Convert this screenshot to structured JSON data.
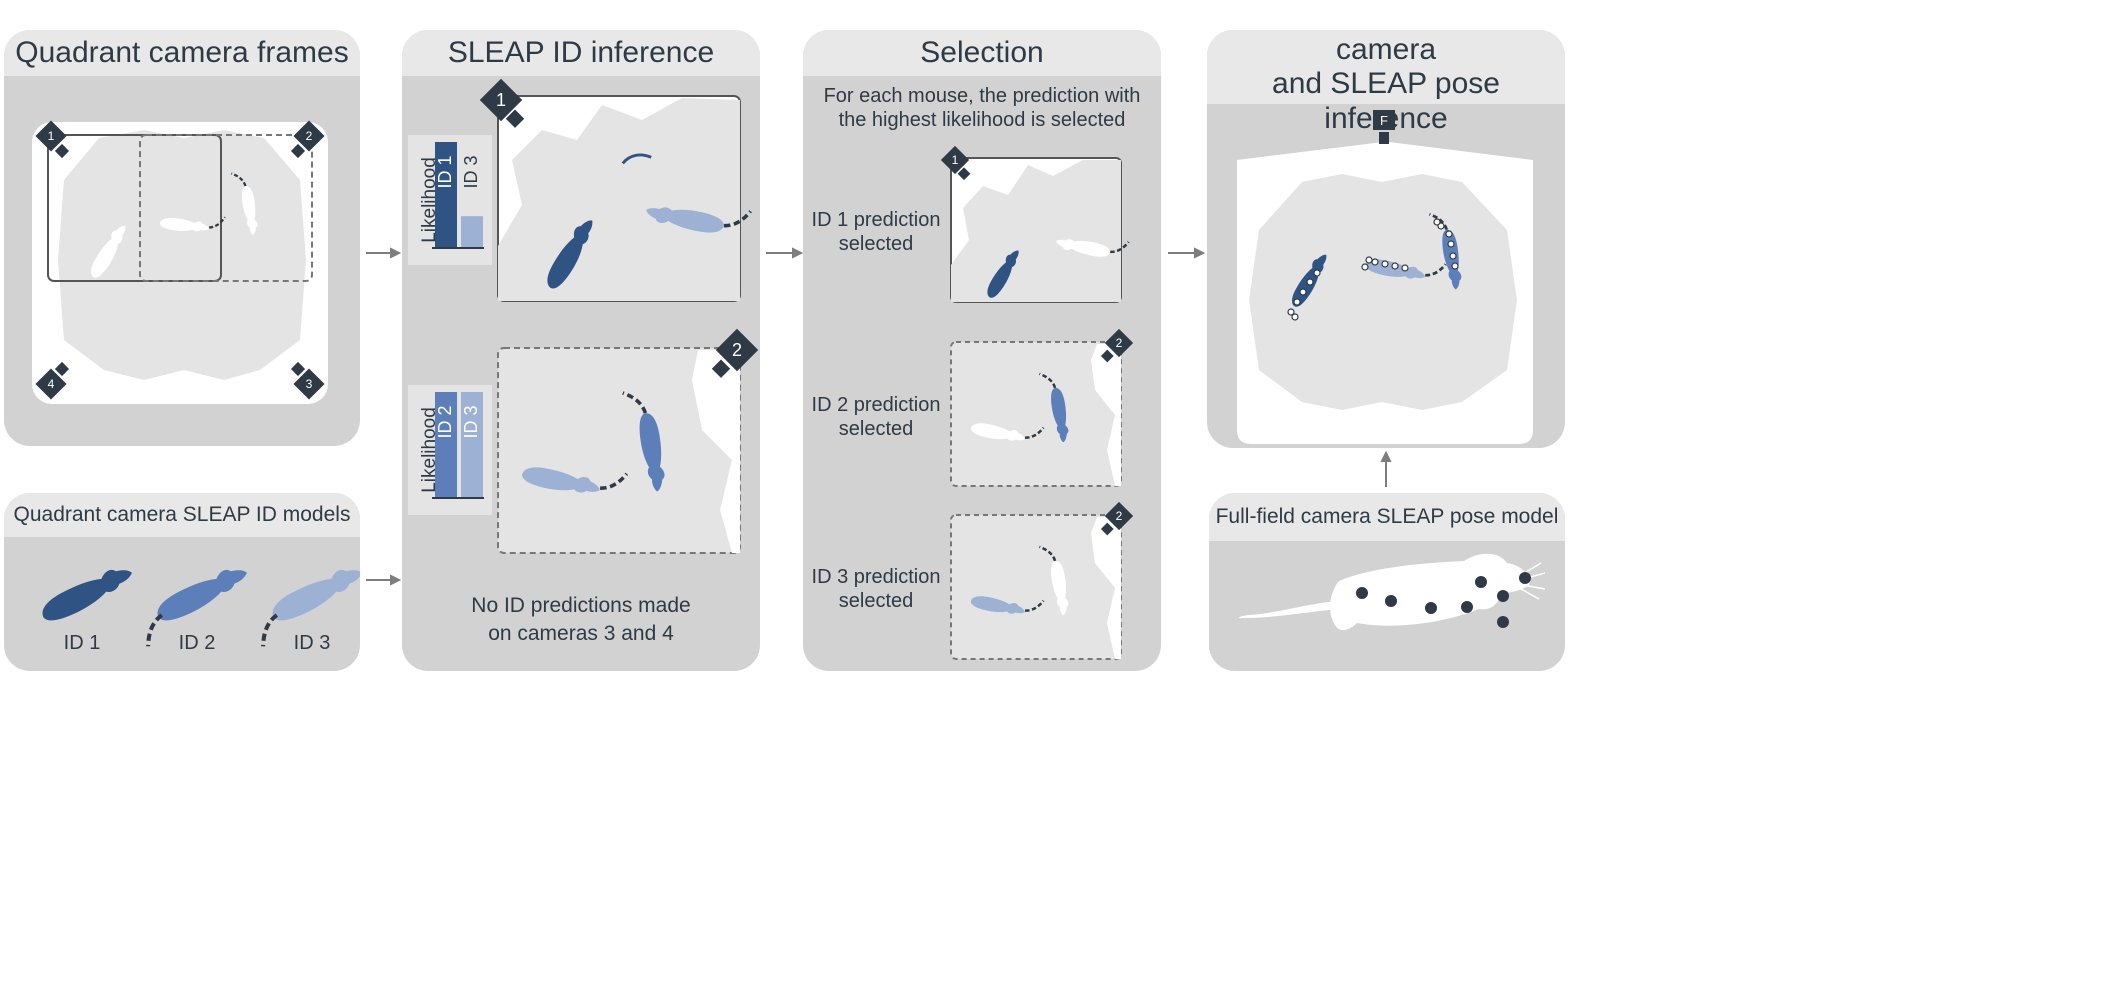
{
  "colors": {
    "panel_bg": "#d2d2d2",
    "header_bg": "#e8e8e8",
    "arena_gray": "#e4e4e4",
    "marker_dark": "#2e3a46",
    "id1": "#2f5383",
    "id2": "#5c7fb9",
    "id3": "#9db1d4",
    "arrow": "#7d7d7d"
  },
  "panel1": {
    "title": "Quadrant camera frames",
    "markers": [
      "1",
      "2",
      "3",
      "4"
    ]
  },
  "panel2": {
    "title": "Quadrant camera SLEAP ID models",
    "ids": [
      "ID 1",
      "ID 2",
      "ID 3"
    ]
  },
  "panel3": {
    "title": "SLEAP ID inference",
    "frame1_marker": "1",
    "frame2_marker": "2",
    "chart1": {
      "ylabel": "Likelihood",
      "bars": [
        "ID 1",
        "ID 3"
      ]
    },
    "chart2": {
      "ylabel": "Likelihood",
      "bars": [
        "ID 2",
        "ID 3"
      ]
    },
    "note": "No ID predictions made\non cameras 3 and 4"
  },
  "panel4": {
    "title": "Selection",
    "description": "For each mouse, the prediction with\nthe highest likelihood is selected",
    "rows": [
      {
        "label": "ID 1 prediction\nselected",
        "marker": "1"
      },
      {
        "label": "ID 2 prediction\nselected",
        "marker": "2"
      },
      {
        "label": "ID 3 prediction\nselected",
        "marker": "2"
      }
    ]
  },
  "panel5": {
    "title": "Projection to full-field camera\nand SLEAP pose inference",
    "camera_label": "F"
  },
  "panel6": {
    "title": "Full-field camera SLEAP pose model"
  },
  "chart_data": [
    {
      "type": "bar",
      "ylabel": "Likelihood",
      "categories": [
        "ID 1",
        "ID 3"
      ],
      "values": [
        1.0,
        0.3
      ]
    },
    {
      "type": "bar",
      "ylabel": "Likelihood",
      "categories": [
        "ID 2",
        "ID 3"
      ],
      "values": [
        1.0,
        1.0
      ]
    }
  ]
}
